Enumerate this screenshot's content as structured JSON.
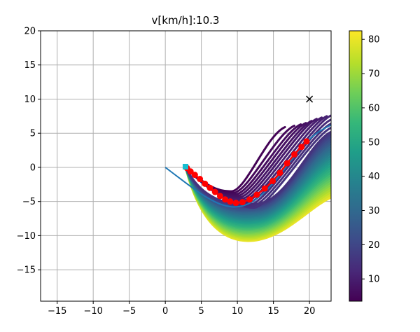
{
  "chart_data": {
    "type": "line",
    "title": "v[km/h]:10.3",
    "xlabel": "",
    "ylabel": "",
    "xlim": [
      -17.3,
      23.0
    ],
    "ylim": [
      -19.6,
      20.0
    ],
    "xticks": [
      -15,
      -10,
      -5,
      0,
      5,
      10,
      15,
      20
    ],
    "xtick_labels": [
      "−15",
      "−10",
      "−5",
      "0",
      "5",
      "10",
      "15",
      "20"
    ],
    "yticks": [
      -15,
      -10,
      -5,
      0,
      5,
      10,
      15,
      20
    ],
    "ytick_labels": [
      "−15",
      "−10",
      "−5",
      "0",
      "5",
      "10",
      "15",
      "20"
    ],
    "grid": true,
    "colorbar": {
      "range": [
        3.5,
        82.5
      ],
      "ticks": [
        10,
        20,
        30,
        40,
        50,
        60,
        70,
        80
      ],
      "tick_labels": [
        "10",
        "20",
        "30",
        "40",
        "50",
        "60",
        "70",
        "80"
      ],
      "colormap": "viridis"
    },
    "reference_path": {
      "color": "#1f77b4",
      "points": [
        [
          0,
          0
        ],
        [
          2,
          -1.6
        ],
        [
          4,
          -3.2
        ],
        [
          6,
          -4.6
        ],
        [
          8,
          -5.6
        ],
        [
          10,
          -5.9
        ],
        [
          12,
          -5.2
        ],
        [
          14,
          -3.5
        ],
        [
          16,
          -1.0
        ],
        [
          18,
          1.8
        ],
        [
          20,
          4.2
        ],
        [
          21.5,
          5.4
        ],
        [
          23,
          6.2
        ]
      ]
    },
    "candidate_paths": {
      "count": 12,
      "start": [
        2.8,
        0.1
      ],
      "end_x": [
        16.6,
        17.9,
        18.8,
        19.5,
        20.3,
        21.0,
        21.7,
        22.4,
        23.0,
        23.0,
        23.0,
        23.0
      ],
      "end_y": [
        5.9,
        6.1,
        6.3,
        6.5,
        6.8,
        7.1,
        7.3,
        7.5,
        7.6,
        7.0,
        6.4,
        5.8
      ],
      "color_values": [
        4,
        5,
        6,
        7,
        8,
        9,
        10,
        11,
        12,
        13,
        14,
        15
      ]
    },
    "cost_fan": {
      "count": 28,
      "color_range": [
        15,
        80
      ],
      "bottom_y_near": [
        -4.8,
        -9.2
      ],
      "bottom_y_far": [
        -5.6,
        -10.9
      ]
    },
    "trajectory": {
      "color": "#ff0000",
      "points": [
        [
          3.0,
          -0.1
        ],
        [
          3.5,
          -0.6
        ],
        [
          4.1,
          -1.1
        ],
        [
          4.8,
          -1.7
        ],
        [
          5.5,
          -2.4
        ],
        [
          6.2,
          -3.0
        ],
        [
          6.9,
          -3.6
        ],
        [
          7.6,
          -4.2
        ],
        [
          8.3,
          -4.7
        ],
        [
          9.0,
          -5.0
        ],
        [
          9.8,
          -5.2
        ],
        [
          10.7,
          -5.1
        ],
        [
          11.7,
          -4.7
        ],
        [
          12.7,
          -4.0
        ],
        [
          13.8,
          -3.1
        ],
        [
          14.9,
          -2.0
        ],
        [
          15.9,
          -0.8
        ],
        [
          16.9,
          0.6
        ],
        [
          17.9,
          1.9
        ],
        [
          18.9,
          3.0
        ],
        [
          19.6,
          3.8
        ]
      ]
    },
    "start_marker": {
      "position": [
        2.8,
        0.1
      ],
      "color": "#17becf"
    },
    "goal_marker": {
      "position": [
        20.0,
        10.0
      ],
      "symbol": "x"
    }
  }
}
